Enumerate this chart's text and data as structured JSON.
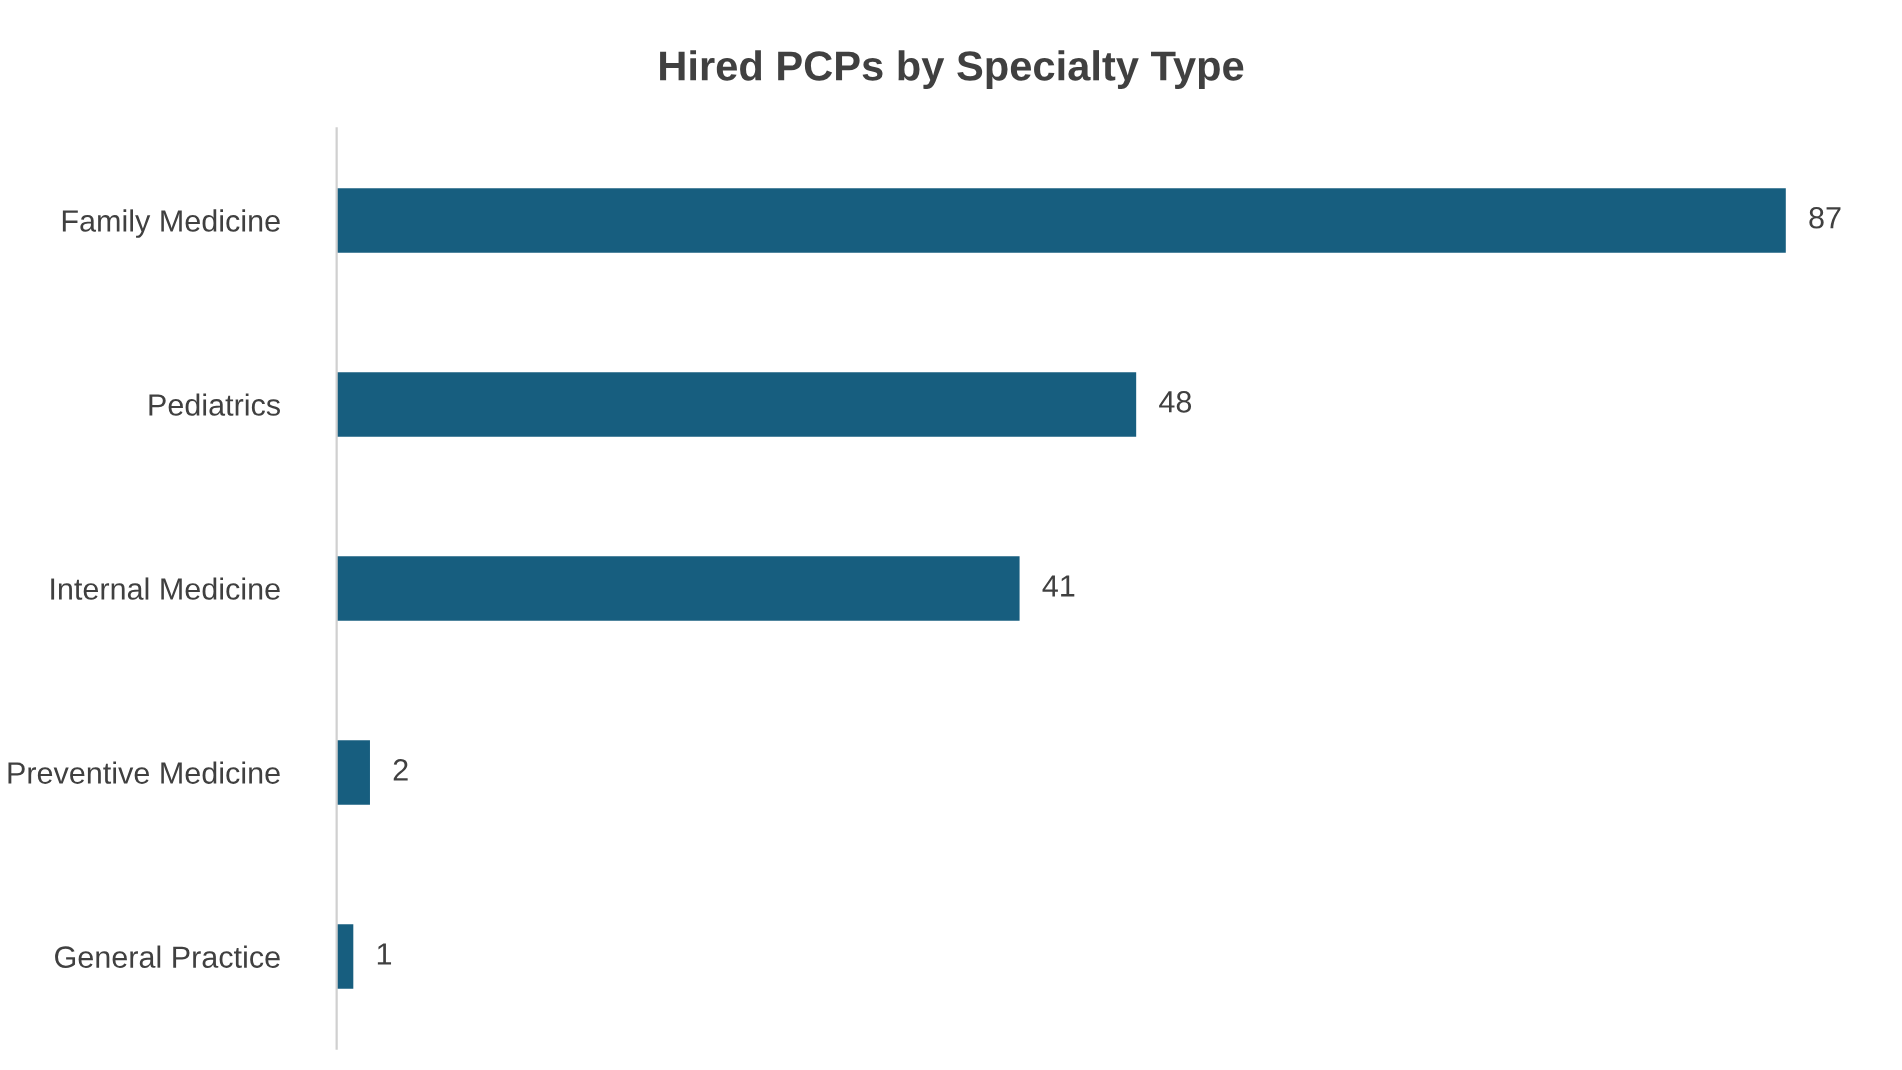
{
  "chart_data": {
    "type": "bar",
    "orientation": "horizontal",
    "title": "Hired PCPs by Specialty Type",
    "categories": [
      "Family Medicine",
      "Pediatrics",
      "Internal Medicine",
      "Preventive Medicine",
      "General Practice"
    ],
    "values": [
      87,
      48,
      41,
      2,
      1
    ],
    "color": "#175e7f",
    "data_labels": true,
    "grid": false,
    "legend": false,
    "tick_labels": "y"
  }
}
